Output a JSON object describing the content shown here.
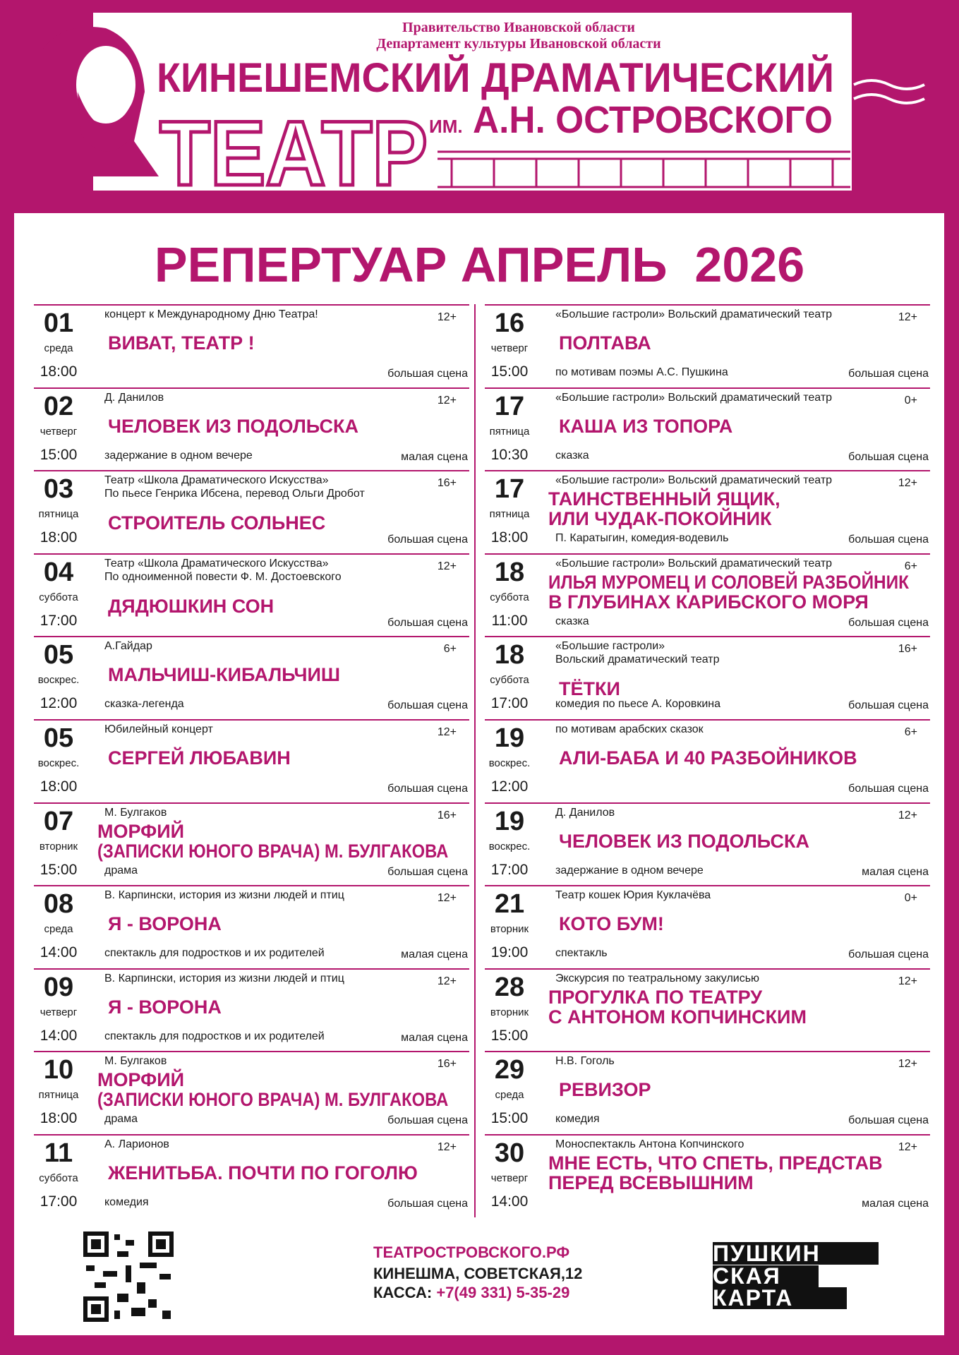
{
  "header": {
    "gov": "Правительство Ивановской области",
    "dept": "Департамент культуры Ивановской области",
    "name1": "КИНЕШЕМСКИЙ ДРАМАТИЧЕСКИЙ",
    "name2": "ТЕАТР",
    "im": "ИМ.",
    "name3": "А.Н. ОСТРОВСКОГО"
  },
  "title": "РЕПЕРТУАР АПРЕЛЬ  2026",
  "schedule": {
    "left": [
      {
        "day": "01",
        "weekday": "среда",
        "time": "18:00",
        "info": [
          "концерт к Международному Дню Театра!"
        ],
        "title": [
          "ВИВАТ, ТЕАТР !"
        ],
        "age": "12+",
        "stage": "большая сцена"
      },
      {
        "day": "02",
        "weekday": "четверг",
        "time": "15:00",
        "info": [
          "Д. Данилов"
        ],
        "title": [
          "ЧЕЛОВЕК ИЗ ПОДОЛЬСКА"
        ],
        "note": "задержание в одном вечере",
        "age": "12+",
        "stage": "малая сцена"
      },
      {
        "day": "03",
        "weekday": "пятница",
        "time": "18:00",
        "info": [
          "Театр «Школа Драматического Искусства»",
          "По пьесе Генрика Ибсена, перевод Ольги Дробот"
        ],
        "title": [
          "СТРОИТЕЛЬ СОЛЬНЕС"
        ],
        "age": "16+",
        "stage": "большая сцена"
      },
      {
        "day": "04",
        "weekday": "суббота",
        "time": "17:00",
        "info": [
          "Театр «Школа Драматического Искусства»",
          "По одноименной повести Ф. М. Достоевского"
        ],
        "title": [
          "ДЯДЮШКИН СОН"
        ],
        "age": "12+",
        "stage": "большая сцена"
      },
      {
        "day": "05",
        "weekday": "воскрес.",
        "time": "12:00",
        "info": [
          "А.Гайдар"
        ],
        "title": [
          "МАЛЬЧИШ-КИБАЛЬЧИШ"
        ],
        "note": "сказка-легенда",
        "age": "6+",
        "stage": "большая сцена"
      },
      {
        "day": "05",
        "weekday": "воскрес.",
        "time": "18:00",
        "info": [
          "Юбилейный концерт"
        ],
        "title": [
          "СЕРГЕЙ ЛЮБАВИН"
        ],
        "age": "12+",
        "stage": "большая сцена"
      },
      {
        "day": "07",
        "weekday": "вторник",
        "time": "15:00",
        "info": [
          "М. Булгаков"
        ],
        "title": [
          "МОРФИЙ",
          "(ЗАПИСКИ ЮНОГО ВРАЧА) М. БУЛГАКОВА"
        ],
        "note": "драма",
        "age": "16+",
        "stage": "большая сцена"
      },
      {
        "day": "08",
        "weekday": "среда",
        "time": "14:00",
        "info": [
          "В. Карпински, история из жизни людей и птиц"
        ],
        "title": [
          "Я - ВОРОНА"
        ],
        "note": "спектакль для подростков и их родителей",
        "age": "12+",
        "stage": "малая сцена"
      },
      {
        "day": "09",
        "weekday": "четверг",
        "time": "14:00",
        "info": [
          "В. Карпински, история из жизни людей и птиц"
        ],
        "title": [
          "Я - ВОРОНА"
        ],
        "note": "спектакль для подростков и их родителей",
        "age": "12+",
        "stage": "малая сцена"
      },
      {
        "day": "10",
        "weekday": "пятница",
        "time": "18:00",
        "info": [
          "М. Булгаков"
        ],
        "title": [
          "МОРФИЙ",
          "(ЗАПИСКИ ЮНОГО ВРАЧА) М. БУЛГАКОВА"
        ],
        "note": "драма",
        "age": "16+",
        "stage": "большая сцена"
      },
      {
        "day": "11",
        "weekday": "суббота",
        "time": "17:00",
        "info": [
          "А. Ларионов"
        ],
        "title": [
          "ЖЕНИТЬБА. ПОЧТИ ПО ГОГОЛЮ"
        ],
        "note": "комедия",
        "age": "12+",
        "stage": "большая сцена"
      }
    ],
    "right": [
      {
        "day": "16",
        "weekday": "четверг",
        "time": "15:00",
        "info": [
          "«Большие гастроли» Вольский драматический театр"
        ],
        "title": [
          "ПОЛТАВА"
        ],
        "note": "по мотивам поэмы А.С. Пушкина",
        "age": "12+",
        "stage": "большая сцена"
      },
      {
        "day": "17",
        "weekday": "пятница",
        "time": "10:30",
        "info": [
          "«Большие гастроли» Вольский драматический театр"
        ],
        "title": [
          "КАША ИЗ ТОПОРА"
        ],
        "note": "сказка",
        "age": "0+",
        "stage": "большая сцена"
      },
      {
        "day": "17",
        "weekday": "пятница",
        "time": "18:00",
        "info": [
          "«Большие гастроли» Вольский драматический театр"
        ],
        "title": [
          "ТАИНСТВЕННЫЙ ЯЩИК,",
          "ИЛИ ЧУДАК-ПОКОЙНИК"
        ],
        "note": "П. Каратыгин, комедия-водевиль",
        "age": "12+",
        "stage": "большая сцена"
      },
      {
        "day": "18",
        "weekday": "суббота",
        "time": "11:00",
        "info": [
          "«Большие гастроли» Вольский драматический театр"
        ],
        "title": [
          "ИЛЬЯ МУРОМЕЦ И СОЛОВЕЙ РАЗБОЙНИК",
          "В ГЛУБИНАХ КАРИБСКОГО МОРЯ"
        ],
        "note": "сказка",
        "age": "6+",
        "stage": "большая сцена"
      },
      {
        "day": "18",
        "weekday": "суббота",
        "time": "17:00",
        "info": [
          "«Большие гастроли»",
          "Вольский драматический театр"
        ],
        "title": [
          "ТЁТКИ"
        ],
        "note": "комедия по пьесе А. Коровкина",
        "age": "16+",
        "stage": "большая сцена"
      },
      {
        "day": "19",
        "weekday": "воскрес.",
        "time": "12:00",
        "info": [
          "по мотивам арабских сказок"
        ],
        "title": [
          "АЛИ-БАБА И 40 РАЗБОЙНИКОВ"
        ],
        "age": "6+",
        "stage": "большая сцена"
      },
      {
        "day": "19",
        "weekday": "воскрес.",
        "time": "17:00",
        "info": [
          "Д. Данилов"
        ],
        "title": [
          "ЧЕЛОВЕК ИЗ ПОДОЛЬСКА"
        ],
        "note": "задержание в одном вечере",
        "age": "12+",
        "stage": "малая сцена"
      },
      {
        "day": "21",
        "weekday": "вторник",
        "time": "19:00",
        "info": [
          "Театр кошек Юрия Куклачёва"
        ],
        "title": [
          "КОТО БУМ!"
        ],
        "note": "спектакль",
        "age": "0+",
        "stage": "большая сцена"
      },
      {
        "day": "28",
        "weekday": "вторник",
        "time": "15:00",
        "info": [
          "Экскурсия по театральному закулисью"
        ],
        "title": [
          "ПРОГУЛКА ПО ТЕАТРУ",
          "С АНТОНОМ КОПЧИНСКИМ"
        ],
        "age": "12+"
      },
      {
        "day": "29",
        "weekday": "среда",
        "time": "15:00",
        "info": [
          "Н.В. Гоголь"
        ],
        "title": [
          "РЕВИЗОР"
        ],
        "note": "комедия",
        "age": "12+",
        "stage": "большая сцена"
      },
      {
        "day": "30",
        "weekday": "четверг",
        "time": "14:00",
        "info": [
          "Моноспектакль Антона Копчинского"
        ],
        "title": [
          "МНЕ ЕСТЬ, ЧТО СПЕТЬ, ПРЕДСТАВ",
          "ПЕРЕД ВСЕВЫШНИМ"
        ],
        "age": "12+",
        "stage": "малая сцена"
      }
    ]
  },
  "footer": {
    "site": "ТЕАТРОСТРОВСКОГО.РФ",
    "address": "КИНЕШМА, СОВЕТСКАЯ,12",
    "kassa": "КАССА:",
    "phone": "+7(49 331) 5-35-29",
    "card": [
      "ПУШКИН",
      "СКАЯ",
      "КАРТА"
    ]
  }
}
